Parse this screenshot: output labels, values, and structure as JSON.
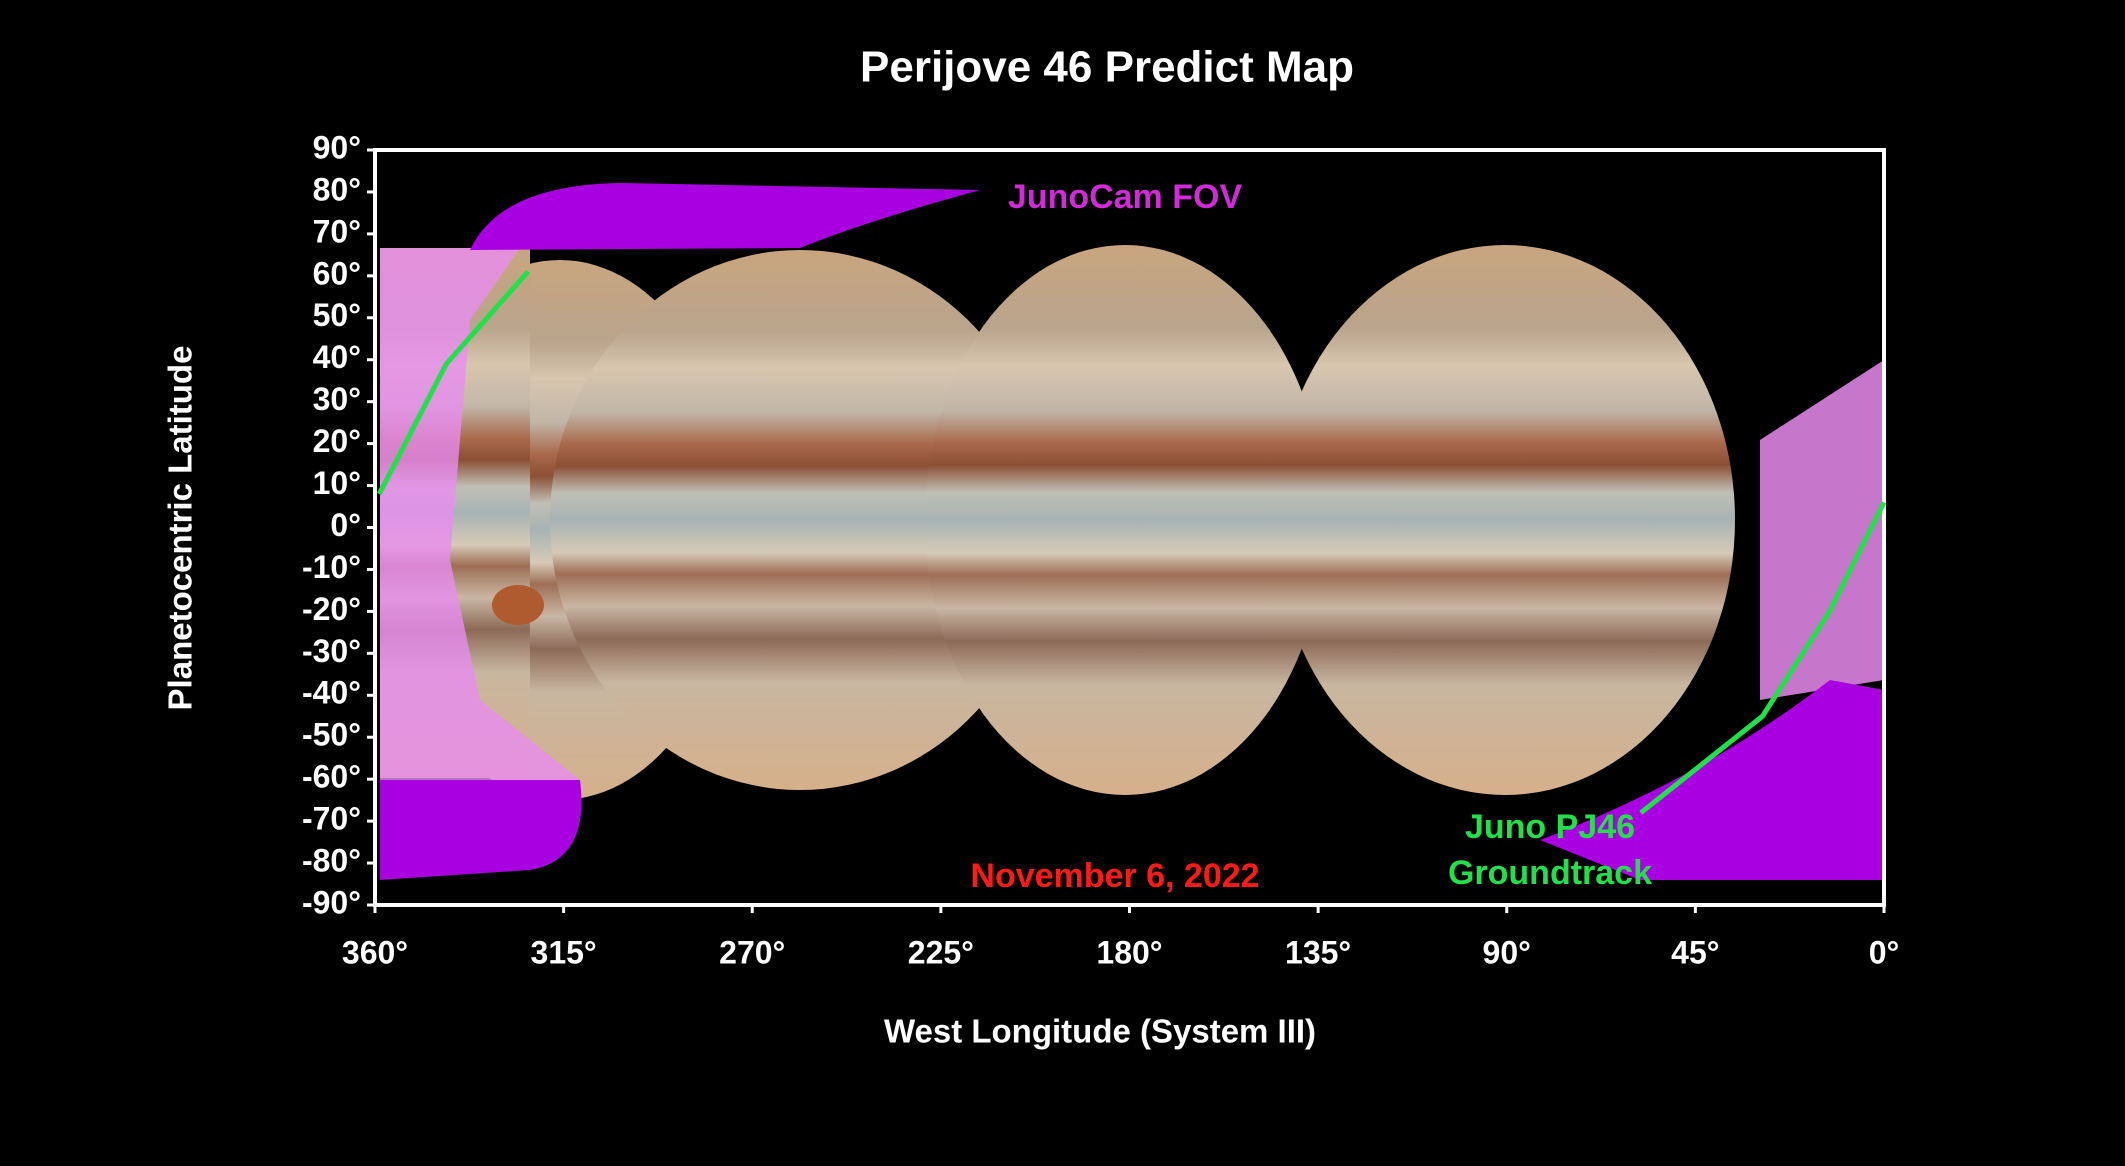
{
  "chart_data": {
    "type": "line",
    "title": "Perijove 46 Predict Map",
    "x_label": "West Longitude (System III)",
    "y_label": "Planetocentric Latitude",
    "xlim": [
      360,
      0
    ],
    "ylim": [
      -90,
      90
    ],
    "xticks": [
      {
        "value": 360,
        "label": "360°"
      },
      {
        "value": 315,
        "label": "315°"
      },
      {
        "value": 270,
        "label": "270°"
      },
      {
        "value": 225,
        "label": "225°"
      },
      {
        "value": 180,
        "label": "180°"
      },
      {
        "value": 135,
        "label": "135°"
      },
      {
        "value": 90,
        "label": "90°"
      },
      {
        "value": 45,
        "label": "45°"
      },
      {
        "value": 0,
        "label": "0°"
      }
    ],
    "yticks": [
      {
        "value": 90,
        "label": "90°"
      },
      {
        "value": 80,
        "label": "80°"
      },
      {
        "value": 70,
        "label": "70°"
      },
      {
        "value": 60,
        "label": "60°"
      },
      {
        "value": 50,
        "label": "50°"
      },
      {
        "value": 40,
        "label": "40°"
      },
      {
        "value": 30,
        "label": "30°"
      },
      {
        "value": 20,
        "label": "20°"
      },
      {
        "value": 10,
        "label": "10°"
      },
      {
        "value": 0,
        "label": "0°"
      },
      {
        "value": -10,
        "label": "-10°"
      },
      {
        "value": -20,
        "label": "-20°"
      },
      {
        "value": -30,
        "label": "-30°"
      },
      {
        "value": -40,
        "label": "-40°"
      },
      {
        "value": -50,
        "label": "-50°"
      },
      {
        "value": -60,
        "label": "-60°"
      },
      {
        "value": -70,
        "label": "-70°"
      },
      {
        "value": -80,
        "label": "-80°"
      },
      {
        "value": -90,
        "label": "-90°"
      }
    ],
    "x": [
      359,
      343,
      323.5,
      null,
      0,
      13,
      29,
      58
    ],
    "series": [
      {
        "color": "#22e04a",
        "values": [
          8,
          39,
          61,
          null,
          6,
          -20,
          -45,
          -68
        ]
      }
    ],
    "annotations": {
      "fov": "JunoCam FOV",
      "date": "November 6, 2022",
      "track_1": "Juno PJ46",
      "track_2": "Groundtrack"
    }
  }
}
